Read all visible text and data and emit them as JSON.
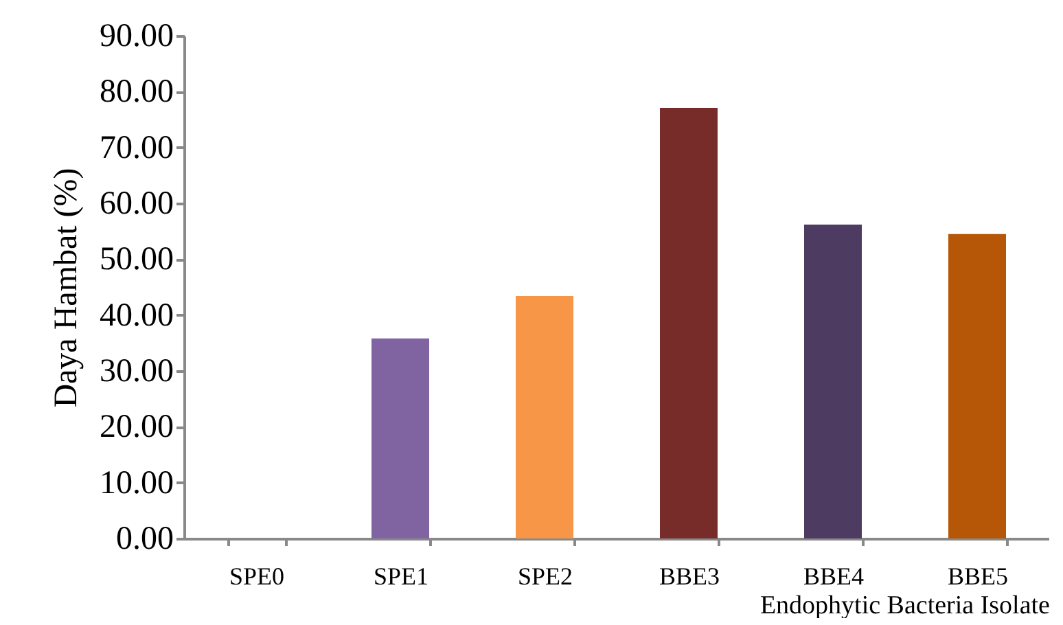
{
  "chart_data": {
    "type": "bar",
    "xlabel": "Endophytic Bacteria Isolate",
    "ylabel": "Daya Hambat (%)",
    "categories": [
      "SPE0",
      "SPE1",
      "SPE2",
      "BBE3",
      "BBE4",
      "BBE5"
    ],
    "values": [
      0,
      35.8,
      43.4,
      77.1,
      56.2,
      54.5
    ],
    "colors": [
      "#4f81bd",
      "#8064a2",
      "#f79646",
      "#772c2a",
      "#4d3b62",
      "#b65708"
    ],
    "ylim": [
      0,
      90
    ],
    "yticks": [
      {
        "value": 0,
        "label": "0.00"
      },
      {
        "value": 10,
        "label": "10.00"
      },
      {
        "value": 20,
        "label": "20.00"
      },
      {
        "value": 30,
        "label": "30.00"
      },
      {
        "value": 40,
        "label": "40.00"
      },
      {
        "value": 50,
        "label": "50.00"
      },
      {
        "value": 60,
        "label": "60.00"
      },
      {
        "value": 70,
        "label": "70.00"
      },
      {
        "value": 80,
        "label": "80.00"
      },
      {
        "value": 90,
        "label": "90.00"
      }
    ],
    "grid": false
  }
}
